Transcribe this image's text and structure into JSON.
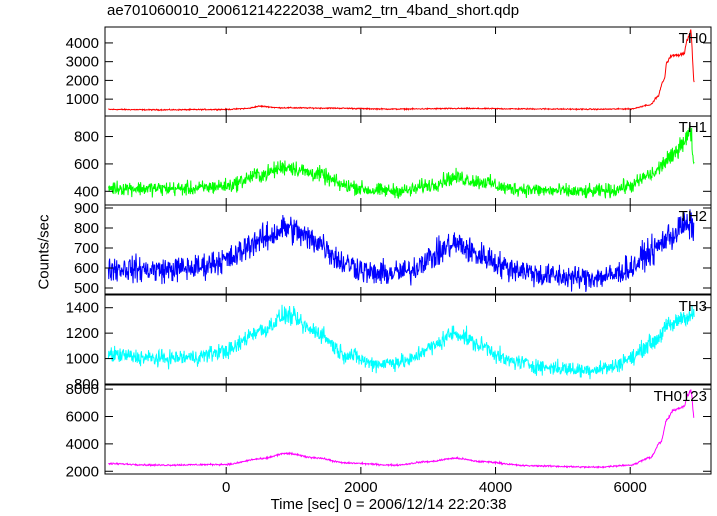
{
  "chart_data": {
    "type": "line",
    "title": "ae701060010_20061214222038_wam2_trn_4band_short.qdp",
    "xlabel": "Time [sec] 0 = 2006/12/14 22:20:38",
    "ylabel": "Counts/sec",
    "xlim": [
      -1800,
      7200
    ],
    "x_ticks": [
      0,
      2000,
      4000,
      6000
    ],
    "x_tick_labels": [
      "0",
      "2000",
      "4000",
      "6000"
    ],
    "grid": false,
    "panels": [
      {
        "name": "TH0",
        "color": "#ff0000",
        "ylim": [
          100,
          4850
        ],
        "y_ticks": [
          1000,
          2000,
          3000,
          4000
        ],
        "y_tick_labels": [
          "1000",
          "2000",
          "3000",
          "4000"
        ],
        "noise": 25,
        "x": [
          -1750,
          -1000,
          0,
          300,
          500,
          800,
          1500,
          2500,
          3500,
          4500,
          5500,
          6000,
          6300,
          6400,
          6500,
          6550,
          6600,
          6700,
          6800,
          6850,
          6900,
          6950
        ],
        "y": [
          450,
          430,
          450,
          500,
          620,
          540,
          520,
          470,
          500,
          480,
          460,
          480,
          700,
          1100,
          2000,
          3000,
          3300,
          3350,
          3450,
          4200,
          4600,
          1900
        ]
      },
      {
        "name": "TH1",
        "color": "#00ff00",
        "ylim": [
          300,
          950
        ],
        "y_ticks": [
          400,
          600,
          800
        ],
        "y_tick_labels": [
          "400",
          "600",
          "800"
        ],
        "noise": 45,
        "x": [
          -1750,
          -1000,
          -500,
          0,
          500,
          900,
          1300,
          1800,
          2200,
          2700,
          3000,
          3400,
          3800,
          4200,
          4800,
          5300,
          5700,
          6000,
          6300,
          6600,
          6800,
          6900,
          6950
        ],
        "y": [
          425,
          420,
          420,
          440,
          520,
          580,
          530,
          440,
          405,
          405,
          445,
          500,
          470,
          420,
          405,
          395,
          405,
          440,
          520,
          640,
          770,
          830,
          600
        ]
      },
      {
        "name": "TH2",
        "color": "#0000ff",
        "ylim": [
          470,
          915
        ],
        "y_ticks": [
          500,
          600,
          700,
          800,
          900
        ],
        "y_tick_labels": [
          "500",
          "600",
          "700",
          "800",
          "900"
        ],
        "noise": 55,
        "x": [
          -1750,
          -1000,
          -500,
          0,
          500,
          900,
          1300,
          1800,
          2200,
          2700,
          3000,
          3400,
          3800,
          4200,
          4800,
          5300,
          5700,
          6000,
          6300,
          6600,
          6800,
          6950
        ],
        "y": [
          600,
          590,
          600,
          640,
          740,
          800,
          740,
          620,
          570,
          580,
          650,
          720,
          660,
          600,
          560,
          550,
          560,
          600,
          680,
          760,
          810,
          810
        ]
      },
      {
        "name": "TH3",
        "color": "#00ffff",
        "ylim": [
          800,
          1500
        ],
        "y_ticks": [
          800,
          1000,
          1200,
          1400
        ],
        "y_tick_labels": [
          "800",
          "1000",
          "1200",
          "1400"
        ],
        "noise": 55,
        "x": [
          -1750,
          -1000,
          -500,
          0,
          500,
          900,
          1300,
          1800,
          2200,
          2700,
          3000,
          3400,
          3800,
          4200,
          4800,
          5300,
          5700,
          6000,
          6300,
          6600,
          6800,
          6950
        ],
        "y": [
          1030,
          1000,
          1010,
          1060,
          1220,
          1340,
          1220,
          1030,
          960,
          980,
          1080,
          1200,
          1100,
          980,
          930,
          910,
          930,
          1000,
          1120,
          1260,
          1330,
          1340
        ]
      },
      {
        "name": "TH0123",
        "color": "#ff00ff",
        "ylim": [
          1800,
          8300
        ],
        "y_ticks": [
          2000,
          4000,
          6000,
          8000
        ],
        "y_tick_labels": [
          "2000",
          "4000",
          "6000",
          "8000"
        ],
        "noise": 50,
        "x": [
          -1750,
          -1000,
          0,
          500,
          900,
          1300,
          1800,
          2500,
          3000,
          3400,
          3800,
          4500,
          5500,
          6000,
          6300,
          6450,
          6550,
          6650,
          6800,
          6850,
          6900,
          6950
        ],
        "y": [
          2550,
          2450,
          2500,
          2900,
          3300,
          3000,
          2600,
          2450,
          2700,
          2950,
          2700,
          2400,
          2300,
          2450,
          3000,
          4100,
          5800,
          6500,
          6700,
          7500,
          7900,
          5900
        ]
      }
    ]
  }
}
